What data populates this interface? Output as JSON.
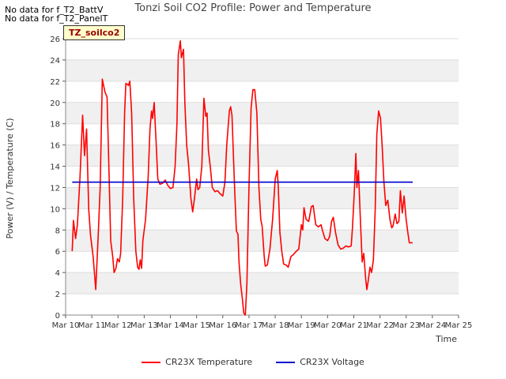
{
  "notes": [
    "No data for f_T2_BattV",
    "No data for f_T2_PanelT"
  ],
  "badge": "TZ_soilco2",
  "chart_data": {
    "type": "line",
    "title": "Tonzi Soil CO2 Profile: Power and Temperature",
    "xlabel": "Time",
    "ylabel": "Power (V) / Temperature (C)",
    "xlim": [
      10,
      25
    ],
    "ylim": [
      0,
      26
    ],
    "x_ticks": [
      "Mar 10",
      "Mar 11",
      "Mar 12",
      "Mar 13",
      "Mar 14",
      "Mar 15",
      "Mar 16",
      "Mar 17",
      "Mar 18",
      "Mar 19",
      "Mar 20",
      "Mar 21",
      "Mar 22",
      "Mar 23",
      "Mar 24",
      "Mar 25"
    ],
    "y_ticks": [
      "0",
      "2",
      "4",
      "6",
      "8",
      "10",
      "12",
      "14",
      "16",
      "18",
      "20",
      "22",
      "24",
      "26"
    ],
    "grid": true,
    "legend_position": "bottom",
    "series": [
      {
        "name": "CR23X Temperature",
        "color": "#ff0000",
        "points": [
          [
            10.25,
            6.0
          ],
          [
            10.3,
            8.9
          ],
          [
            10.38,
            7.2
          ],
          [
            10.45,
            8.5
          ],
          [
            10.55,
            13
          ],
          [
            10.65,
            18.8
          ],
          [
            10.72,
            15
          ],
          [
            10.8,
            17.5
          ],
          [
            10.88,
            10
          ],
          [
            10.95,
            7.5
          ],
          [
            11.05,
            5.5
          ],
          [
            11.15,
            2.4
          ],
          [
            11.25,
            7.8
          ],
          [
            11.32,
            12
          ],
          [
            11.4,
            22.2
          ],
          [
            11.5,
            21
          ],
          [
            11.58,
            20.5
          ],
          [
            11.65,
            14
          ],
          [
            11.72,
            7
          ],
          [
            11.8,
            5.5
          ],
          [
            11.85,
            4.0
          ],
          [
            11.92,
            4.4
          ],
          [
            11.98,
            5.3
          ],
          [
            12.05,
            5.0
          ],
          [
            12.1,
            5.8
          ],
          [
            12.18,
            11
          ],
          [
            12.25,
            19
          ],
          [
            12.3,
            21.8
          ],
          [
            12.4,
            21.6
          ],
          [
            12.45,
            22.0
          ],
          [
            12.52,
            19
          ],
          [
            12.6,
            11
          ],
          [
            12.68,
            6
          ],
          [
            12.75,
            4.5
          ],
          [
            12.8,
            4.3
          ],
          [
            12.85,
            5.2
          ],
          [
            12.9,
            4.4
          ],
          [
            12.95,
            7.0
          ],
          [
            13.05,
            9.0
          ],
          [
            13.15,
            13
          ],
          [
            13.22,
            17.5
          ],
          [
            13.28,
            19.2
          ],
          [
            13.32,
            18.5
          ],
          [
            13.38,
            20.0
          ],
          [
            13.45,
            16.5
          ],
          [
            13.52,
            12.8
          ],
          [
            13.6,
            12.3
          ],
          [
            13.7,
            12.4
          ],
          [
            13.8,
            12.7
          ],
          [
            13.9,
            12.2
          ],
          [
            14.0,
            11.9
          ],
          [
            14.1,
            12.0
          ],
          [
            14.18,
            14
          ],
          [
            14.25,
            18
          ],
          [
            14.3,
            24.5
          ],
          [
            14.38,
            25.8
          ],
          [
            14.42,
            24.2
          ],
          [
            14.5,
            25
          ],
          [
            14.55,
            20
          ],
          [
            14.62,
            16
          ],
          [
            14.7,
            14
          ],
          [
            14.78,
            11
          ],
          [
            14.85,
            9.7
          ],
          [
            14.92,
            11
          ],
          [
            15.0,
            12.8
          ],
          [
            15.05,
            11.8
          ],
          [
            15.12,
            12.0
          ],
          [
            15.2,
            14
          ],
          [
            15.28,
            20.4
          ],
          [
            15.35,
            18.7
          ],
          [
            15.4,
            19
          ],
          [
            15.45,
            15.5
          ],
          [
            15.52,
            14
          ],
          [
            15.6,
            12
          ],
          [
            15.7,
            11.6
          ],
          [
            15.8,
            11.7
          ],
          [
            15.9,
            11.4
          ],
          [
            16.0,
            11.2
          ],
          [
            16.08,
            12.5
          ],
          [
            16.15,
            16
          ],
          [
            16.25,
            19.2
          ],
          [
            16.3,
            19.6
          ],
          [
            16.35,
            18.8
          ],
          [
            16.45,
            12
          ],
          [
            16.52,
            7.9
          ],
          [
            16.58,
            7.6
          ],
          [
            16.62,
            5
          ],
          [
            16.68,
            3
          ],
          [
            16.75,
            1.5
          ],
          [
            16.8,
            0.2
          ],
          [
            16.86,
            0
          ],
          [
            16.92,
            3
          ],
          [
            17.0,
            12
          ],
          [
            17.08,
            19.5
          ],
          [
            17.15,
            21.2
          ],
          [
            17.22,
            21.2
          ],
          [
            17.3,
            19
          ],
          [
            17.38,
            12
          ],
          [
            17.45,
            9
          ],
          [
            17.5,
            8.4
          ],
          [
            17.58,
            5.5
          ],
          [
            17.62,
            4.6
          ],
          [
            17.7,
            4.7
          ],
          [
            17.8,
            6.2
          ],
          [
            17.9,
            9
          ],
          [
            18.0,
            12.8
          ],
          [
            18.08,
            13.6
          ],
          [
            18.12,
            12
          ],
          [
            18.18,
            7.8
          ],
          [
            18.25,
            6
          ],
          [
            18.32,
            4.8
          ],
          [
            18.42,
            4.7
          ],
          [
            18.5,
            4.5
          ],
          [
            18.6,
            5.5
          ],
          [
            18.7,
            5.7
          ],
          [
            18.8,
            6.0
          ],
          [
            18.9,
            6.2
          ],
          [
            19.0,
            8.5
          ],
          [
            19.05,
            8
          ],
          [
            19.1,
            10.1
          ],
          [
            19.18,
            9.0
          ],
          [
            19.28,
            8.8
          ],
          [
            19.38,
            10.2
          ],
          [
            19.45,
            10.3
          ],
          [
            19.55,
            8.5
          ],
          [
            19.65,
            8.3
          ],
          [
            19.75,
            8.5
          ],
          [
            19.8,
            8.0
          ],
          [
            19.9,
            7.2
          ],
          [
            20.0,
            7.0
          ],
          [
            20.08,
            7.4
          ],
          [
            20.15,
            8.8
          ],
          [
            20.22,
            9.2
          ],
          [
            20.3,
            7.8
          ],
          [
            20.4,
            6.6
          ],
          [
            20.5,
            6.2
          ],
          [
            20.6,
            6.3
          ],
          [
            20.7,
            6.5
          ],
          [
            20.8,
            6.4
          ],
          [
            20.9,
            6.5
          ],
          [
            20.95,
            8.2
          ],
          [
            21.02,
            11.5
          ],
          [
            21.08,
            15.2
          ],
          [
            21.12,
            12
          ],
          [
            21.18,
            13.6
          ],
          [
            21.25,
            9
          ],
          [
            21.32,
            5
          ],
          [
            21.38,
            5.8
          ],
          [
            21.45,
            3.5
          ],
          [
            21.5,
            2.4
          ],
          [
            21.55,
            3.2
          ],
          [
            21.62,
            4.5
          ],
          [
            21.68,
            4.0
          ],
          [
            21.75,
            5.2
          ],
          [
            21.82,
            10
          ],
          [
            21.88,
            17
          ],
          [
            21.95,
            19.2
          ],
          [
            22.02,
            18.5
          ],
          [
            22.08,
            16
          ],
          [
            22.15,
            12.5
          ],
          [
            22.22,
            10.3
          ],
          [
            22.3,
            10.8
          ],
          [
            22.38,
            9
          ],
          [
            22.45,
            8.2
          ],
          [
            22.5,
            8.4
          ],
          [
            22.58,
            9.5
          ],
          [
            22.65,
            8.6
          ],
          [
            22.72,
            8.8
          ],
          [
            22.78,
            11.7
          ],
          [
            22.85,
            9.6
          ],
          [
            22.92,
            11.2
          ],
          [
            23.0,
            9
          ],
          [
            23.05,
            8.0
          ],
          [
            23.12,
            6.8
          ],
          [
            23.25,
            6.8
          ]
        ]
      },
      {
        "name": "CR23X Voltage",
        "color": "#0000cc",
        "points": [
          [
            10.25,
            12.5
          ],
          [
            23.25,
            12.5
          ]
        ]
      }
    ]
  }
}
